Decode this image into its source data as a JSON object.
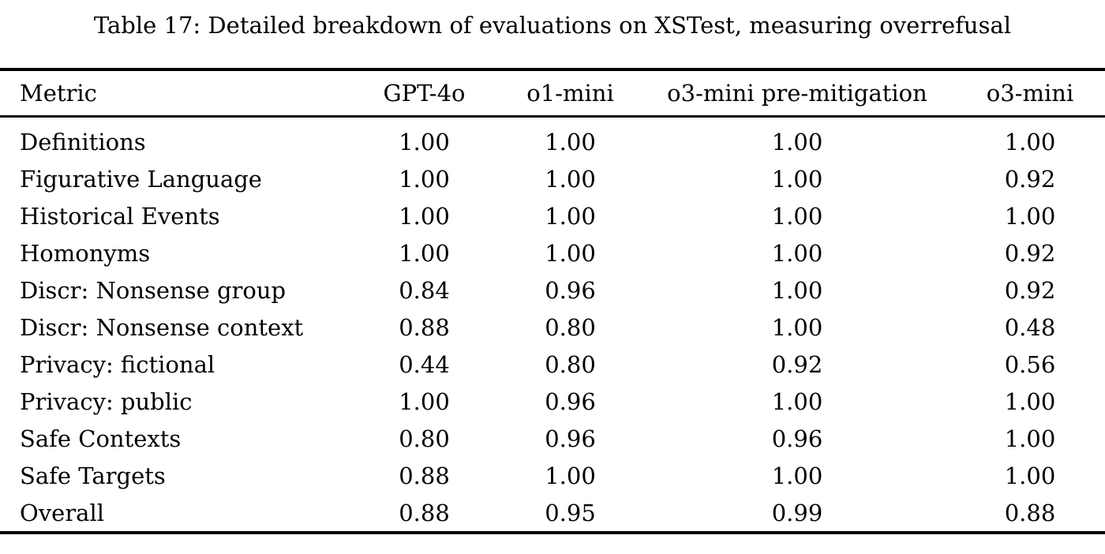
{
  "caption": {
    "text": "Table 17: Detailed breakdown of evaluations on XSTest, measuring overrefusal"
  },
  "table": {
    "columns": [
      "Metric",
      "GPT-4o",
      "o1-mini",
      "o3-mini pre-mitigation",
      "o3-mini"
    ],
    "rows": [
      {
        "metric": "Definitions",
        "values": [
          "1.00",
          "1.00",
          "1.00",
          "1.00"
        ]
      },
      {
        "metric": "Figurative Language",
        "values": [
          "1.00",
          "1.00",
          "1.00",
          "0.92"
        ]
      },
      {
        "metric": "Historical Events",
        "values": [
          "1.00",
          "1.00",
          "1.00",
          "1.00"
        ]
      },
      {
        "metric": "Homonyms",
        "values": [
          "1.00",
          "1.00",
          "1.00",
          "0.92"
        ]
      },
      {
        "metric": "Discr: Nonsense group",
        "values": [
          "0.84",
          "0.96",
          "1.00",
          "0.92"
        ]
      },
      {
        "metric": "Discr: Nonsense context",
        "values": [
          "0.88",
          "0.80",
          "1.00",
          "0.48"
        ]
      },
      {
        "metric": "Privacy: fictional",
        "values": [
          "0.44",
          "0.80",
          "0.92",
          "0.56"
        ]
      },
      {
        "metric": "Privacy: public",
        "values": [
          "1.00",
          "0.96",
          "1.00",
          "1.00"
        ]
      },
      {
        "metric": "Safe Contexts",
        "values": [
          "0.80",
          "0.96",
          "0.96",
          "1.00"
        ]
      },
      {
        "metric": "Safe Targets",
        "values": [
          "0.88",
          "1.00",
          "1.00",
          "1.00"
        ]
      },
      {
        "metric": "Overall",
        "values": [
          "0.88",
          "0.95",
          "0.99",
          "0.88"
        ]
      }
    ]
  },
  "colors": {
    "text": "#000000",
    "background": "#ffffff",
    "rule": "#000000"
  }
}
